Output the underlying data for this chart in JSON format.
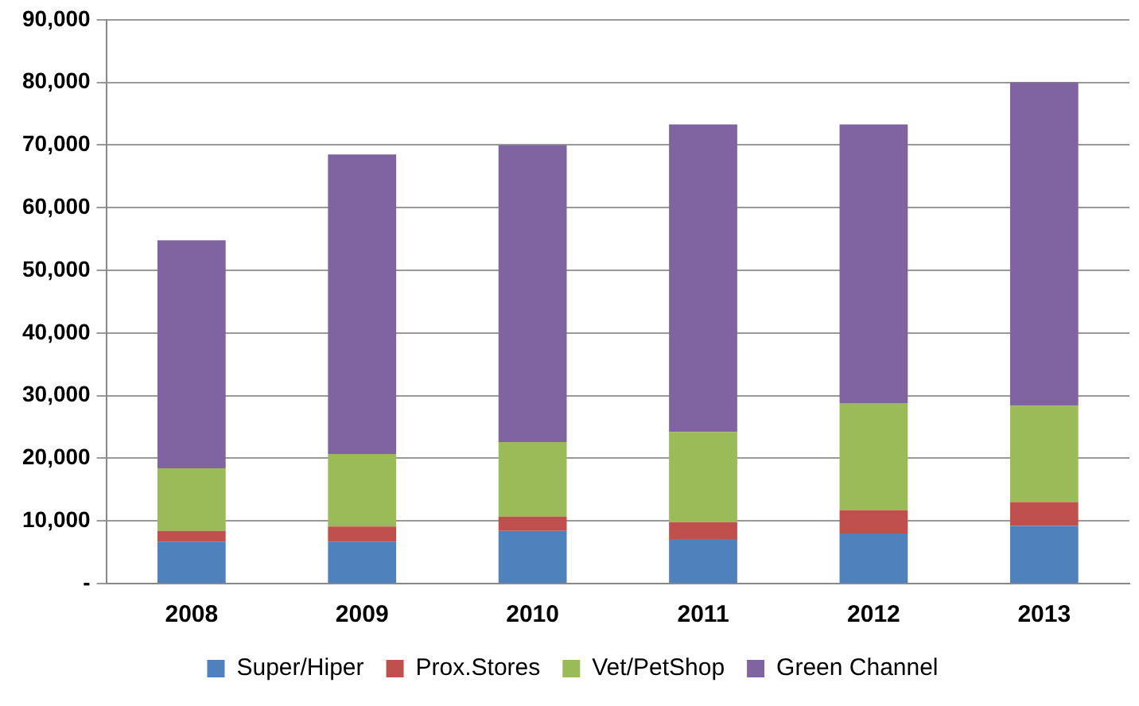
{
  "chart_data": {
    "type": "bar",
    "stacked": true,
    "categories": [
      "2008",
      "2009",
      "2010",
      "2011",
      "2012",
      "2013"
    ],
    "series": [
      {
        "name": "Super/Hiper",
        "color": "#4f81bd",
        "values": [
          6700,
          6700,
          8400,
          7100,
          8000,
          9200
        ]
      },
      {
        "name": "Prox.Stores",
        "color": "#c0504d",
        "values": [
          1700,
          2400,
          2300,
          2700,
          3700,
          3800
        ]
      },
      {
        "name": "Vet/PetShop",
        "color": "#9bbb59",
        "values": [
          10000,
          11600,
          11900,
          14400,
          17100,
          15400
        ]
      },
      {
        "name": "Green Channel",
        "color": "#8064a2",
        "values": [
          36400,
          47800,
          47400,
          49100,
          44500,
          51600
        ]
      }
    ],
    "ylim": [
      0,
      90000
    ],
    "yticks": [
      {
        "value": 0,
        "label": "-"
      },
      {
        "value": 10000,
        "label": "10,000"
      },
      {
        "value": 20000,
        "label": "20,000"
      },
      {
        "value": 30000,
        "label": "30,000"
      },
      {
        "value": 40000,
        "label": "40,000"
      },
      {
        "value": 50000,
        "label": "50,000"
      },
      {
        "value": 60000,
        "label": "60,000"
      },
      {
        "value": 70000,
        "label": "70,000"
      },
      {
        "value": 80000,
        "label": "80,000"
      },
      {
        "value": 90000,
        "label": "90,000"
      }
    ],
    "grid": "y",
    "legend": "bottom"
  }
}
